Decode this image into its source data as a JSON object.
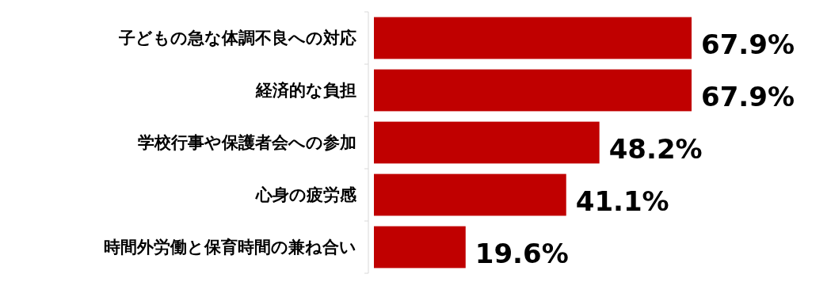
{
  "chart_data": {
    "type": "bar",
    "orientation": "horizontal",
    "categories": [
      "子どもの急な体調不良への対応",
      "経済的な負担",
      "学校行事や保護者会への参加",
      "心身の疲労感",
      "時間外労働と保育時間の兼ね合い"
    ],
    "values": [
      67.9,
      67.9,
      48.2,
      41.1,
      19.6
    ],
    "value_labels": [
      "67.9%",
      "67.9%",
      "48.2%",
      "41.1%",
      "19.6%"
    ],
    "color": "#c00000"
  }
}
